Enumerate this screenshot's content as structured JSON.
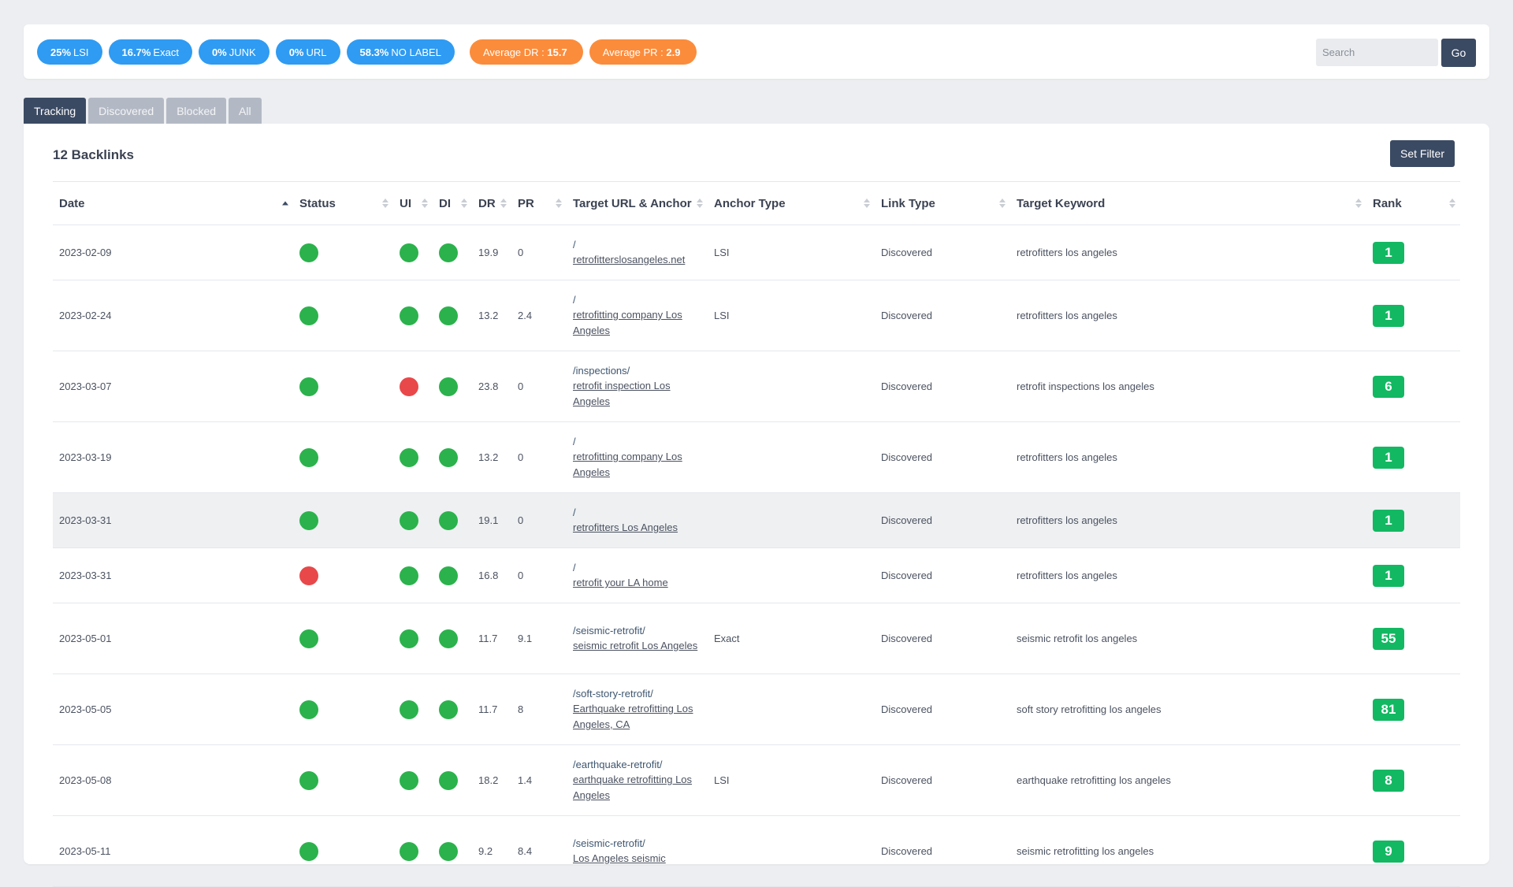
{
  "stats": {
    "pills": [
      {
        "value": "25%",
        "label": "LSI"
      },
      {
        "value": "16.7%",
        "label": "Exact"
      },
      {
        "value": "0%",
        "label": "JUNK"
      },
      {
        "value": "0%",
        "label": "URL"
      },
      {
        "value": "58.3%",
        "label": "NO LABEL"
      }
    ],
    "averages": [
      {
        "label": "Average DR :",
        "value": "15.7"
      },
      {
        "label": "Average PR :",
        "value": "2.9"
      }
    ]
  },
  "search": {
    "placeholder": "Search",
    "go_label": "Go"
  },
  "tabs": [
    {
      "label": "Tracking",
      "active": true
    },
    {
      "label": "Discovered",
      "active": false
    },
    {
      "label": "Blocked",
      "active": false
    },
    {
      "label": "All",
      "active": false
    }
  ],
  "panel": {
    "title": "12 Backlinks",
    "filter_label": "Set Filter"
  },
  "columns": [
    "Date",
    "Status",
    "UI",
    "DI",
    "DR",
    "PR",
    "Target URL & Anchor",
    "Anchor Type",
    "Link Type",
    "Target Keyword",
    "Rank"
  ],
  "rows": [
    {
      "date": "2023-02-09",
      "status": "green",
      "ui": "green",
      "di": "green",
      "dr": "19.9",
      "pr": "0",
      "path": "/",
      "anchor": "retrofitterslosangeles.net",
      "anchor_type": "LSI",
      "link_type": "Discovered",
      "keyword": "retrofitters los angeles",
      "rank": "1"
    },
    {
      "date": "2023-02-24",
      "status": "green",
      "ui": "green",
      "di": "green",
      "dr": "13.2",
      "pr": "2.4",
      "path": "/",
      "anchor": "retrofitting company Los Angeles",
      "anchor_type": "LSI",
      "link_type": "Discovered",
      "keyword": "retrofitters los angeles",
      "rank": "1"
    },
    {
      "date": "2023-03-07",
      "status": "green",
      "ui": "red",
      "di": "green",
      "dr": "23.8",
      "pr": "0",
      "path": "/inspections/",
      "anchor": "retrofit inspection Los Angeles",
      "anchor_type": "",
      "link_type": "Discovered",
      "keyword": "retrofit inspections los angeles",
      "rank": "6"
    },
    {
      "date": "2023-03-19",
      "status": "green",
      "ui": "green",
      "di": "green",
      "dr": "13.2",
      "pr": "0",
      "path": "/",
      "anchor": "retrofitting company Los Angeles",
      "anchor_type": "",
      "link_type": "Discovered",
      "keyword": "retrofitters los angeles",
      "rank": "1"
    },
    {
      "date": "2023-03-31",
      "status": "green",
      "ui": "green",
      "di": "green",
      "dr": "19.1",
      "pr": "0",
      "path": "/",
      "anchor": "retrofitters Los Angeles",
      "anchor_type": "",
      "link_type": "Discovered",
      "keyword": "retrofitters los angeles",
      "rank": "1"
    },
    {
      "date": "2023-03-31",
      "status": "red",
      "ui": "green",
      "di": "green",
      "dr": "16.8",
      "pr": "0",
      "path": "/",
      "anchor": "retrofit your LA home",
      "anchor_type": "",
      "link_type": "Discovered",
      "keyword": "retrofitters los angeles",
      "rank": "1"
    },
    {
      "date": "2023-05-01",
      "status": "green",
      "ui": "green",
      "di": "green",
      "dr": "11.7",
      "pr": "9.1",
      "path": "/seismic-retrofit/",
      "anchor": "seismic retrofit Los Angeles",
      "anchor_type": "Exact",
      "link_type": "Discovered",
      "keyword": "seismic retrofit los angeles",
      "rank": "55"
    },
    {
      "date": "2023-05-05",
      "status": "green",
      "ui": "green",
      "di": "green",
      "dr": "11.7",
      "pr": "8",
      "path": "/soft-story-retrofit/",
      "anchor": "Earthquake retrofitting Los Angeles, CA",
      "anchor_type": "",
      "link_type": "Discovered",
      "keyword": "soft story retrofitting los angeles",
      "rank": "81"
    },
    {
      "date": "2023-05-08",
      "status": "green",
      "ui": "green",
      "di": "green",
      "dr": "18.2",
      "pr": "1.4",
      "path": "/earthquake-retrofit/",
      "anchor": "earthquake retrofitting Los Angeles",
      "anchor_type": "LSI",
      "link_type": "Discovered",
      "keyword": "earthquake retrofitting los angeles",
      "rank": "8"
    },
    {
      "date": "2023-05-11",
      "status": "green",
      "ui": "green",
      "di": "green",
      "dr": "9.2",
      "pr": "8.4",
      "path": "/seismic-retrofit/",
      "anchor": "Los Angeles seismic",
      "anchor_type": "",
      "link_type": "Discovered",
      "keyword": "seismic retrofitting los angeles",
      "rank": "9"
    }
  ]
}
